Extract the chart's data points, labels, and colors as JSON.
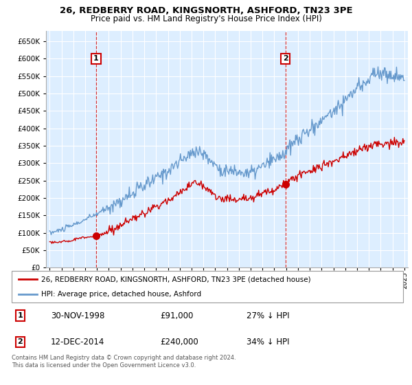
{
  "title": "26, REDBERRY ROAD, KINGSNORTH, ASHFORD, TN23 3PE",
  "subtitle": "Price paid vs. HM Land Registry's House Price Index (HPI)",
  "yticks": [
    0,
    50000,
    100000,
    150000,
    200000,
    250000,
    300000,
    350000,
    400000,
    450000,
    500000,
    550000,
    600000,
    650000
  ],
  "ylim": [
    0,
    680000
  ],
  "xlim_start": 1994.7,
  "xlim_end": 2025.3,
  "xtick_years": [
    1995,
    1996,
    1997,
    1998,
    1999,
    2000,
    2001,
    2002,
    2003,
    2004,
    2005,
    2006,
    2007,
    2008,
    2009,
    2010,
    2011,
    2012,
    2013,
    2014,
    2015,
    2016,
    2017,
    2018,
    2019,
    2020,
    2021,
    2022,
    2023,
    2024,
    2025
  ],
  "transaction1_x": 1998.92,
  "transaction1_y": 91000,
  "transaction2_x": 2014.95,
  "transaction2_y": 240000,
  "red_color": "#cc0000",
  "blue_color": "#6699cc",
  "bg_plot_color": "#ddeeff",
  "grid_color": "#ffffff",
  "legend_label_red": "26, REDBERRY ROAD, KINGSNORTH, ASHFORD, TN23 3PE (detached house)",
  "legend_label_blue": "HPI: Average price, detached house, Ashford",
  "info1_num": "1",
  "info1_date": "30-NOV-1998",
  "info1_price": "£91,000",
  "info1_hpi": "27% ↓ HPI",
  "info2_num": "2",
  "info2_date": "12-DEC-2014",
  "info2_price": "£240,000",
  "info2_hpi": "34% ↓ HPI",
  "footnote": "Contains HM Land Registry data © Crown copyright and database right 2024.\nThis data is licensed under the Open Government Licence v3.0."
}
